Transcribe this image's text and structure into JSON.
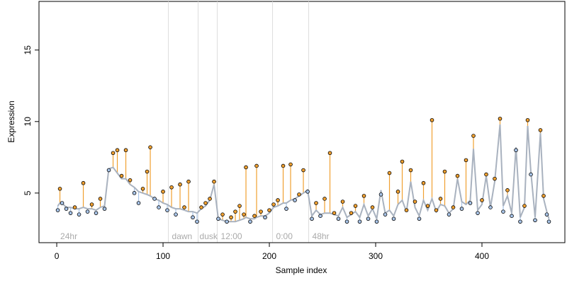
{
  "chart_data": {
    "type": "scatter",
    "xlabel": "Sample index",
    "ylabel": "Expression",
    "xlim": [
      -16.7,
      478
    ],
    "ylim": [
      1.53,
      18.4
    ],
    "xticks": [
      0,
      100,
      200,
      300,
      400
    ],
    "yticks": [
      5,
      10,
      15
    ],
    "above_color": "#f0a030",
    "below_color": "#a8c4e8",
    "fit_color": "#a9b2bf",
    "vlines": [
      105,
      133,
      151,
      203,
      237
    ],
    "phase_labels": [
      {
        "x": 2,
        "label": "24hr"
      },
      {
        "x": 107,
        "label": "dawn"
      },
      {
        "x": 133,
        "label": "dusk"
      },
      {
        "x": 153,
        "label": "12:00"
      },
      {
        "x": 205,
        "label": "0:00"
      },
      {
        "x": 239,
        "label": "48hr"
      }
    ],
    "x": [
      1,
      3,
      5,
      9,
      13,
      17,
      21,
      25,
      29,
      33,
      37,
      41,
      45,
      49,
      53,
      57,
      61,
      65,
      69,
      73,
      77,
      81,
      85,
      88,
      92,
      96,
      100,
      104,
      108,
      112,
      116,
      120,
      124,
      128,
      132,
      136,
      140,
      144,
      148,
      152,
      156,
      160,
      164,
      168,
      172,
      176,
      178,
      182,
      186,
      188,
      192,
      196,
      200,
      204,
      208,
      213,
      216,
      220,
      224,
      228,
      232,
      236,
      240,
      244,
      248,
      252,
      257,
      261,
      265,
      269,
      273,
      277,
      281,
      285,
      289,
      293,
      297,
      301,
      305,
      309,
      313,
      317,
      321,
      325,
      329,
      333,
      337,
      341,
      345,
      349,
      353,
      357,
      361,
      365,
      369,
      373,
      377,
      381,
      385,
      389,
      392,
      396,
      400,
      404,
      408,
      412,
      417,
      420,
      424,
      428,
      432,
      436,
      440,
      443,
      446,
      450,
      455,
      458,
      461,
      463
    ],
    "values": [
      3.8,
      5.3,
      4.3,
      3.9,
      3.6,
      4.0,
      3.5,
      5.7,
      3.7,
      4.2,
      3.6,
      4.6,
      3.9,
      6.6,
      7.8,
      8.0,
      6.2,
      8.0,
      5.9,
      5.0,
      4.3,
      5.3,
      6.5,
      8.2,
      4.6,
      4.0,
      5.1,
      3.8,
      5.4,
      3.5,
      5.6,
      4.0,
      5.8,
      3.3,
      3.0,
      4.0,
      4.3,
      4.6,
      5.8,
      3.2,
      3.5,
      3.0,
      3.3,
      3.7,
      4.1,
      3.5,
      6.8,
      3.0,
      3.4,
      6.9,
      3.7,
      3.3,
      3.8,
      4.2,
      4.5,
      6.9,
      3.9,
      7.0,
      4.5,
      4.9,
      6.6,
      5.1,
      3.2,
      4.3,
      3.4,
      4.6,
      7.8,
      3.6,
      3.2,
      4.4,
      3.0,
      3.6,
      4.1,
      3.0,
      4.8,
      3.2,
      4.0,
      3.0,
      4.9,
      3.5,
      6.4,
      3.2,
      5.1,
      7.2,
      3.8,
      6.6,
      4.4,
      3.2,
      5.7,
      4.1,
      10.1,
      3.8,
      4.6,
      6.5,
      3.5,
      4.0,
      6.2,
      3.9,
      7.3,
      4.3,
      9.0,
      3.6,
      4.5,
      6.3,
      4.0,
      6.0,
      10.2,
      3.7,
      5.2,
      3.4,
      8.0,
      3.0,
      4.1,
      10.1,
      6.3,
      3.1,
      9.4,
      4.8,
      3.5,
      3.0
    ],
    "fit": [
      4.1,
      4.3,
      4.3,
      4.0,
      4.0,
      3.9,
      3.9,
      4.0,
      3.9,
      3.9,
      3.8,
      4.0,
      4.1,
      6.7,
      6.8,
      6.4,
      6.0,
      6.0,
      5.6,
      5.4,
      5.1,
      5.0,
      4.9,
      4.8,
      4.6,
      4.5,
      4.3,
      4.2,
      4.0,
      3.9,
      3.9,
      3.8,
      3.7,
      3.7,
      3.6,
      3.9,
      4.1,
      4.5,
      5.6,
      3.2,
      3.1,
      3.0,
      3.0,
      3.0,
      3.1,
      3.2,
      3.3,
      3.2,
      3.2,
      3.3,
      3.4,
      3.4,
      3.6,
      4.0,
      4.1,
      4.3,
      4.3,
      4.5,
      4.6,
      4.8,
      5.0,
      5.2,
      3.4,
      3.8,
      3.5,
      3.6,
      3.6,
      3.5,
      3.4,
      4.0,
      3.3,
      3.5,
      3.7,
      3.3,
      4.2,
      3.4,
      3.9,
      3.2,
      5.2,
      3.6,
      3.8,
      3.4,
      4.2,
      4.5,
      3.7,
      5.8,
      4.0,
      3.4,
      4.5,
      3.8,
      4.6,
      3.7,
      4.2,
      4.1,
      3.6,
      3.9,
      6.0,
      4.4,
      4.2,
      4.5,
      8.1,
      3.8,
      4.2,
      6.2,
      4.0,
      5.8,
      9.8,
      4.1,
      4.8,
      3.6,
      8.2,
      3.3,
      4.0,
      9.7,
      6.5,
      3.3,
      9.2,
      4.6,
      3.7,
      3.2
    ]
  }
}
